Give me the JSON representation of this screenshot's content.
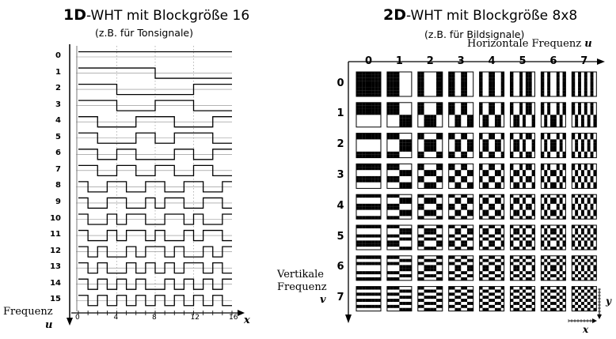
{
  "left": {
    "title_bold": "1D",
    "title_rest": "-WHT mit Blockgröße 16",
    "subtitle": "(z.B. für Tonsignale)",
    "row_labels": [
      "0",
      "1",
      "2",
      "3",
      "4",
      "5",
      "6",
      "7",
      "8",
      "9",
      "10",
      "11",
      "12",
      "13",
      "14",
      "15"
    ],
    "x_ticks": [
      "0",
      "4",
      "8",
      "12",
      "16"
    ],
    "x_axis_label": "x",
    "y_axis_label": "Frequenz",
    "y_axis_var": "u"
  },
  "right": {
    "title_bold": "2D",
    "title_rest": "-WHT mit Blockgröße 8x8",
    "subtitle": "(z.B. für Bildsignale)",
    "h_axis_label": "Horizontale Frequenz",
    "h_axis_var": "u",
    "col_labels": [
      "0",
      "1",
      "2",
      "3",
      "4",
      "5",
      "6",
      "7"
    ],
    "row_labels": [
      "0",
      "1",
      "2",
      "3",
      "4",
      "5",
      "6",
      "7"
    ],
    "v_axis_label_1": "Vertikale",
    "v_axis_label_2": "Frequenz",
    "v_axis_var": "v",
    "mini_x_label": "x",
    "mini_y_label": "y"
  }
}
